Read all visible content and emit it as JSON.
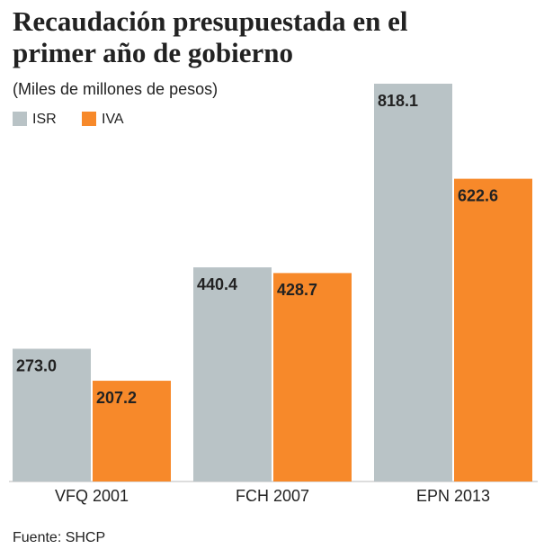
{
  "chart_data": {
    "type": "bar",
    "title": "Recaudación presupuestada en el primer año de gobierno",
    "subtitle": "(Miles de millones de pesos)",
    "source": "Fuente: SHCP",
    "categories": [
      "VFQ 2001",
      "FCH 2007",
      "EPN 2013"
    ],
    "series": [
      {
        "name": "ISR",
        "color": "#b9c3c6",
        "values": [
          273.0,
          440.4,
          818.1
        ],
        "value_labels": [
          "273.0",
          "440.4",
          "818.1"
        ]
      },
      {
        "name": "IVA",
        "color": "#f7892a",
        "values": [
          207.2,
          428.7,
          622.6
        ],
        "value_labels": [
          "207.2",
          "428.7",
          "622.6"
        ]
      }
    ]
  }
}
